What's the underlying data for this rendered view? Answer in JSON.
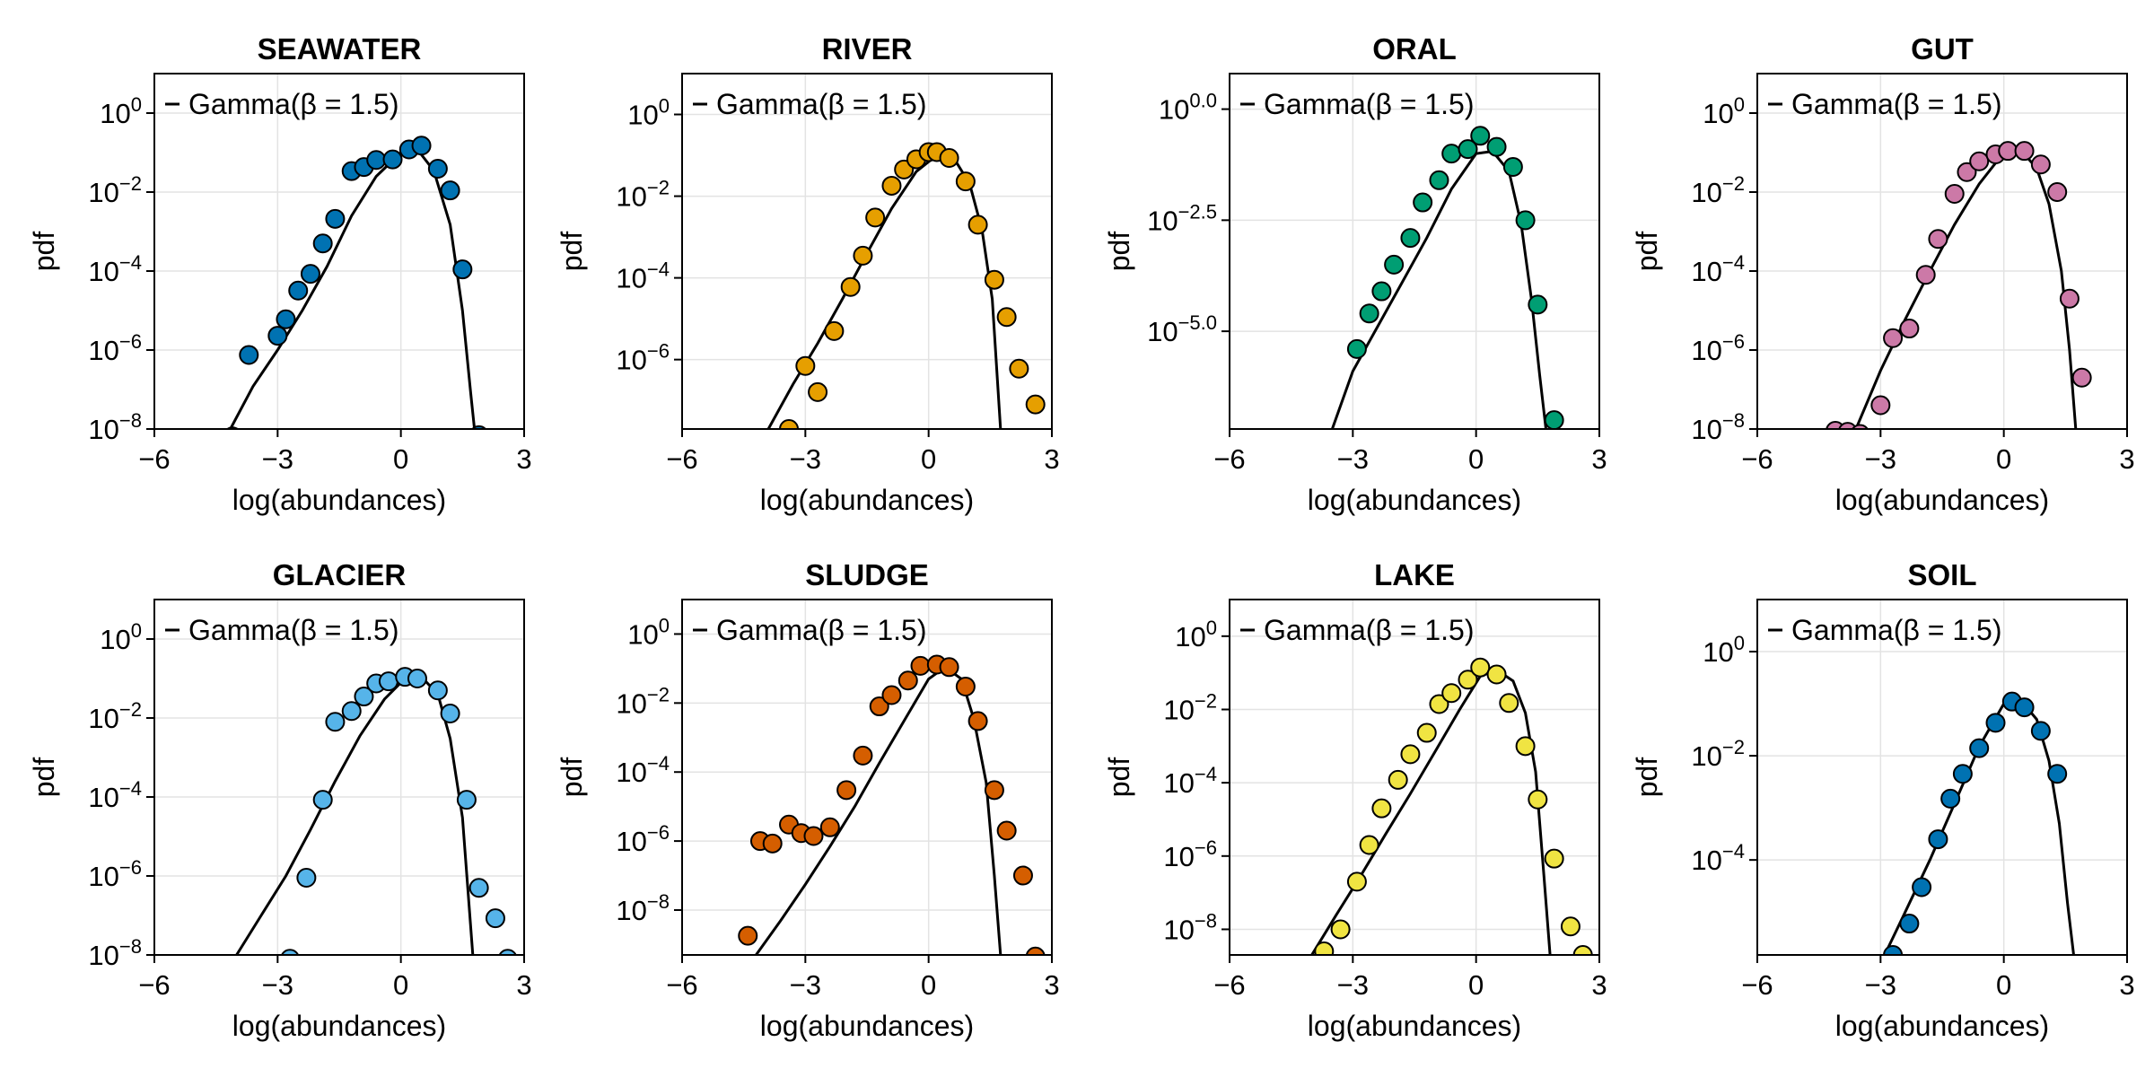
{
  "chart_data": [
    {
      "type": "scatter",
      "title": "SEAWATER",
      "xlabel": "log(abundances)",
      "ylabel": "pdf",
      "xlim": [
        -6,
        3
      ],
      "xticks": [
        -6,
        -3,
        0,
        3
      ],
      "xtick_labels": [
        "−6",
        "−3",
        "0",
        "3"
      ],
      "y_scale": "log10",
      "ylim": [
        1e-08,
        10.0
      ],
      "yticks": [
        1e-08,
        1e-06,
        0.0001,
        0.01,
        1
      ],
      "ytick_base": [
        "10",
        "10",
        "10",
        "10",
        "10"
      ],
      "ytick_exp": [
        "−8",
        "−6",
        "−4",
        "−2",
        "0"
      ],
      "grid": true,
      "legend_position": "top-left",
      "color": "#0072b2",
      "series": [
        {
          "name": "Gamma(β = 1.5)",
          "kind": "line",
          "x": [
            -4.2,
            -3.6,
            -3.0,
            -2.4,
            -1.8,
            -1.2,
            -0.6,
            0.0,
            0.4,
            0.8,
            1.2,
            1.5,
            1.7,
            1.8
          ],
          "y": [
            8e-09,
            1.2e-07,
            1e-06,
            1e-05,
            0.00013,
            0.0025,
            0.025,
            0.1,
            0.12,
            0.035,
            0.0015,
            1e-05,
            8e-08,
            8e-09
          ]
        },
        {
          "kind": "scatter",
          "x": [
            -4.1,
            -3.7,
            -3.0,
            -2.8,
            -2.5,
            -2.2,
            -1.9,
            -1.6,
            -1.2,
            -0.9,
            -0.6,
            -0.2,
            0.2,
            0.5,
            0.9,
            1.2,
            1.5,
            1.9
          ],
          "y": [
            6.5e-09,
            7.5e-07,
            2.3e-06,
            6e-06,
            3.2e-05,
            8.5e-05,
            0.0005,
            0.0021,
            0.034,
            0.043,
            0.065,
            0.067,
            0.12,
            0.15,
            0.039,
            0.011,
            0.00011,
            7e-09
          ]
        }
      ]
    },
    {
      "type": "scatter",
      "title": "RIVER",
      "xlabel": "log(abundances)",
      "ylabel": "pdf",
      "xlim": [
        -6,
        3
      ],
      "xticks": [
        -6,
        -3,
        0,
        3
      ],
      "xtick_labels": [
        "−6",
        "−3",
        "0",
        "3"
      ],
      "y_scale": "log10",
      "ylim": [
        2e-08,
        10.0
      ],
      "yticks": [
        1e-06,
        0.0001,
        0.01,
        1
      ],
      "ytick_base": [
        "10",
        "10",
        "10",
        "10"
      ],
      "ytick_exp": [
        "−6",
        "−4",
        "−2",
        "0"
      ],
      "grid": true,
      "legend_position": "top-left",
      "color": "#e69f00",
      "series": [
        {
          "name": "Gamma(β = 1.5)",
          "kind": "line",
          "x": [
            -3.9,
            -3.3,
            -2.7,
            -2.1,
            -1.5,
            -0.9,
            -0.3,
            0.2,
            0.6,
            1.0,
            1.3,
            1.55,
            1.75
          ],
          "y": [
            2e-08,
            2.5e-07,
            2.5e-06,
            3e-05,
            0.0004,
            0.005,
            0.04,
            0.1,
            0.09,
            0.02,
            0.0015,
            3e-05,
            2e-08
          ]
        },
        {
          "kind": "scatter",
          "x": [
            -3.4,
            -3.0,
            -2.7,
            -2.3,
            -1.9,
            -1.6,
            -1.3,
            -0.9,
            -0.6,
            -0.3,
            0.0,
            0.2,
            0.5,
            0.9,
            1.2,
            1.6,
            1.9,
            2.2,
            2.6
          ],
          "y": [
            2e-08,
            7e-07,
            1.6e-07,
            5e-06,
            6e-05,
            0.00035,
            0.003,
            0.018,
            0.045,
            0.08,
            0.12,
            0.12,
            0.086,
            0.023,
            0.002,
            9e-05,
            1.1e-05,
            6e-07,
            8e-08
          ]
        }
      ]
    },
    {
      "type": "scatter",
      "title": "ORAL",
      "xlabel": "log(abundances)",
      "ylabel": "pdf",
      "xlim": [
        -6,
        3
      ],
      "xticks": [
        -6,
        -3,
        0,
        3
      ],
      "xtick_labels": [
        "−6",
        "−3",
        "0",
        "3"
      ],
      "y_scale": "log10",
      "ylim": [
        -7.2,
        0.8
      ],
      "yticks": [
        -5.0,
        -2.5,
        0.0
      ],
      "ytick_base": [
        "10",
        "10",
        "10"
      ],
      "ytick_exp": [
        "−5.0",
        "−2.5",
        "0.0"
      ],
      "y_values_are_log10": true,
      "grid": true,
      "legend_position": "top-left",
      "color": "#009e73",
      "series": [
        {
          "name": "Gamma(β = 1.5)",
          "kind": "line",
          "x": [
            -3.5,
            -3.0,
            -2.4,
            -1.8,
            -1.2,
            -0.6,
            0.0,
            0.4,
            0.8,
            1.1,
            1.35,
            1.55,
            1.7
          ],
          "y": [
            -7.2,
            -5.9,
            -4.9,
            -3.9,
            -2.9,
            -1.8,
            -1.0,
            -0.95,
            -1.4,
            -2.6,
            -4.3,
            -6.0,
            -7.2
          ]
        },
        {
          "kind": "scatter",
          "x": [
            -2.9,
            -2.6,
            -2.3,
            -2.0,
            -1.6,
            -1.3,
            -0.9,
            -0.6,
            -0.2,
            0.1,
            0.5,
            0.9,
            1.2,
            1.5,
            1.9
          ],
          "y": [
            -5.4,
            -4.6,
            -4.1,
            -3.5,
            -2.9,
            -2.1,
            -1.6,
            -1.0,
            -0.9,
            -0.6,
            -0.85,
            -1.3,
            -2.5,
            -4.4,
            -7.0
          ]
        }
      ]
    },
    {
      "type": "scatter",
      "title": "GUT",
      "xlabel": "log(abundances)",
      "ylabel": "pdf",
      "xlim": [
        -6,
        3
      ],
      "xticks": [
        -6,
        -3,
        0,
        3
      ],
      "xtick_labels": [
        "−6",
        "−3",
        "0",
        "3"
      ],
      "y_scale": "log10",
      "ylim": [
        1e-08,
        10.0
      ],
      "yticks": [
        1e-08,
        1e-06,
        0.0001,
        0.01,
        1
      ],
      "ytick_base": [
        "10",
        "10",
        "10",
        "10",
        "10"
      ],
      "ytick_exp": [
        "−8",
        "−6",
        "−4",
        "−2",
        "0"
      ],
      "grid": true,
      "legend_position": "top-left",
      "color": "#cc79a7",
      "series": [
        {
          "name": "Gamma(β = 1.5)",
          "kind": "line",
          "x": [
            -3.6,
            -3.0,
            -2.4,
            -1.8,
            -1.2,
            -0.6,
            0.0,
            0.4,
            0.8,
            1.1,
            1.4,
            1.6,
            1.75
          ],
          "y": [
            1e-08,
            3e-07,
            6e-06,
            0.0001,
            0.0015,
            0.016,
            0.1,
            0.12,
            0.04,
            0.005,
            0.0001,
            1e-06,
            1e-08
          ]
        },
        {
          "kind": "scatter",
          "x": [
            -4.1,
            -3.8,
            -3.5,
            -3.0,
            -2.7,
            -2.3,
            -1.9,
            -1.6,
            -1.2,
            -0.9,
            -0.6,
            -0.2,
            0.1,
            0.5,
            0.9,
            1.3,
            1.6,
            1.9
          ],
          "y": [
            9e-09,
            8.5e-09,
            7.5e-09,
            4e-08,
            2e-06,
            3.5e-06,
            8e-05,
            0.00065,
            0.009,
            0.032,
            0.06,
            0.09,
            0.11,
            0.11,
            0.05,
            0.01,
            2e-05,
            2e-07
          ]
        }
      ]
    },
    {
      "type": "scatter",
      "title": "GLACIER",
      "xlabel": "log(abundances)",
      "ylabel": "pdf",
      "xlim": [
        -6,
        3
      ],
      "xticks": [
        -6,
        -3,
        0,
        3
      ],
      "xtick_labels": [
        "−6",
        "−3",
        "0",
        "3"
      ],
      "y_scale": "log10",
      "ylim": [
        1e-08,
        10.0
      ],
      "yticks": [
        1e-08,
        1e-06,
        0.0001,
        0.01,
        1
      ],
      "ytick_base": [
        "10",
        "10",
        "10",
        "10",
        "10"
      ],
      "ytick_exp": [
        "−8",
        "−6",
        "−4",
        "−2",
        "0"
      ],
      "grid": true,
      "legend_position": "top-left",
      "color": "#56b4e9",
      "series": [
        {
          "name": "Gamma(β = 1.5)",
          "kind": "line",
          "x": [
            -4.0,
            -3.4,
            -2.8,
            -2.2,
            -1.6,
            -1.0,
            -0.4,
            0.1,
            0.5,
            0.9,
            1.2,
            1.5,
            1.75
          ],
          "y": [
            1e-08,
            1e-07,
            1e-06,
            1.5e-05,
            0.00025,
            0.0035,
            0.03,
            0.1,
            0.11,
            0.04,
            0.003,
            3e-05,
            1e-08
          ]
        },
        {
          "kind": "scatter",
          "x": [
            -2.7,
            -2.3,
            -1.9,
            -1.6,
            -1.2,
            -0.9,
            -0.6,
            -0.3,
            0.1,
            0.4,
            0.9,
            1.2,
            1.6,
            1.9,
            2.3,
            2.6
          ],
          "y": [
            8e-09,
            9e-07,
            8.5e-05,
            0.008,
            0.015,
            0.035,
            0.075,
            0.085,
            0.11,
            0.1,
            0.05,
            0.013,
            8.5e-05,
            5e-07,
            8.5e-08,
            8e-09
          ]
        }
      ]
    },
    {
      "type": "scatter",
      "title": "SLUDGE",
      "xlabel": "log(abundances)",
      "ylabel": "pdf",
      "xlim": [
        -6,
        3
      ],
      "xticks": [
        -6,
        -3,
        0,
        3
      ],
      "xtick_labels": [
        "−6",
        "−3",
        "0",
        "3"
      ],
      "y_scale": "log10",
      "ylim": [
        5e-10,
        10.0
      ],
      "yticks": [
        1e-08,
        1e-06,
        0.0001,
        0.01,
        1
      ],
      "ytick_base": [
        "10",
        "10",
        "10",
        "10",
        "10"
      ],
      "ytick_exp": [
        "−8",
        "−6",
        "−4",
        "−2",
        "0"
      ],
      "grid": true,
      "legend_position": "top-left",
      "color": "#d55e00",
      "series": [
        {
          "name": "Gamma(β = 1.5)",
          "kind": "line",
          "x": [
            -4.2,
            -3.6,
            -3.0,
            -2.4,
            -1.8,
            -1.2,
            -0.6,
            0.0,
            0.4,
            0.8,
            1.1,
            1.4,
            1.6,
            1.75
          ],
          "y": [
            5e-10,
            5e-09,
            5.5e-08,
            7e-07,
            1e-05,
            0.00018,
            0.003,
            0.05,
            0.11,
            0.05,
            0.0035,
            5e-05,
            1e-07,
            5e-10
          ]
        },
        {
          "kind": "scatter",
          "x": [
            -4.4,
            -4.1,
            -3.8,
            -3.4,
            -3.1,
            -2.8,
            -2.4,
            -2.0,
            -1.6,
            -1.2,
            -0.9,
            -0.5,
            -0.2,
            0.2,
            0.5,
            0.9,
            1.2,
            1.6,
            1.9,
            2.3,
            2.6
          ],
          "y": [
            1.8e-09,
            1e-06,
            8.5e-07,
            3e-06,
            1.7e-06,
            1.4e-06,
            2.5e-06,
            3e-05,
            0.0003,
            0.008,
            0.017,
            0.045,
            0.12,
            0.13,
            0.11,
            0.03,
            0.003,
            3e-05,
            2e-06,
            1e-07,
            4.5e-10
          ]
        }
      ]
    },
    {
      "type": "scatter",
      "title": "LAKE",
      "xlabel": "log(abundances)",
      "ylabel": "pdf",
      "xlim": [
        -6,
        3
      ],
      "xticks": [
        -6,
        -3,
        0,
        3
      ],
      "xtick_labels": [
        "−6",
        "−3",
        "0",
        "3"
      ],
      "y_scale": "log10",
      "ylim": [
        2e-09,
        10.0
      ],
      "yticks": [
        1e-08,
        1e-06,
        0.0001,
        0.01,
        1
      ],
      "ytick_base": [
        "10",
        "10",
        "10",
        "10",
        "10"
      ],
      "ytick_exp": [
        "−8",
        "−6",
        "−4",
        "−2",
        "0"
      ],
      "grid": true,
      "legend_position": "top-left",
      "color": "#f0e442",
      "series": [
        {
          "name": "Gamma(β = 1.5)",
          "kind": "line",
          "x": [
            -4.0,
            -3.4,
            -2.8,
            -2.2,
            -1.6,
            -1.0,
            -0.4,
            0.1,
            0.5,
            0.9,
            1.2,
            1.45,
            1.65,
            1.8
          ],
          "y": [
            2e-09,
            2.5e-08,
            3e-07,
            4e-06,
            5e-05,
            0.0007,
            0.01,
            0.08,
            0.12,
            0.06,
            0.008,
            0.0002,
            3e-07,
            2e-09
          ]
        },
        {
          "kind": "scatter",
          "x": [
            -3.7,
            -3.3,
            -2.9,
            -2.6,
            -2.3,
            -1.9,
            -1.6,
            -1.2,
            -0.9,
            -0.6,
            -0.2,
            0.1,
            0.5,
            0.8,
            1.2,
            1.5,
            1.9,
            2.3,
            2.6
          ],
          "y": [
            2.5e-09,
            1e-08,
            2e-07,
            2e-06,
            2e-05,
            0.00012,
            0.0006,
            0.0023,
            0.014,
            0.028,
            0.065,
            0.14,
            0.09,
            0.015,
            0.001,
            3.5e-05,
            8.5e-07,
            1.2e-08,
            2e-09
          ]
        }
      ]
    },
    {
      "type": "scatter",
      "title": "SOIL",
      "xlabel": "log(abundances)",
      "ylabel": "pdf",
      "xlim": [
        -6,
        3
      ],
      "xticks": [
        -6,
        -3,
        0,
        3
      ],
      "xtick_labels": [
        "−6",
        "−3",
        "0",
        "3"
      ],
      "y_scale": "log10",
      "ylim": [
        1.5e-06,
        10.0
      ],
      "yticks": [
        0.0001,
        0.01,
        1
      ],
      "ytick_base": [
        "10",
        "10",
        "10"
      ],
      "ytick_exp": [
        "−4",
        "−2",
        "0"
      ],
      "grid": true,
      "legend_position": "top-left",
      "color": "#0072b2",
      "series": [
        {
          "name": "Gamma(β = 1.5)",
          "kind": "line",
          "x": [
            -2.9,
            -2.4,
            -1.8,
            -1.2,
            -0.6,
            0.0,
            0.4,
            0.8,
            1.1,
            1.35,
            1.55,
            1.7
          ],
          "y": [
            1.5e-06,
            1e-05,
            0.0001,
            0.0012,
            0.015,
            0.1,
            0.12,
            0.05,
            0.008,
            0.0005,
            1.5e-05,
            1.5e-06
          ]
        },
        {
          "kind": "scatter",
          "x": [
            -2.7,
            -2.3,
            -2.0,
            -1.6,
            -1.3,
            -1.0,
            -0.6,
            -0.2,
            0.2,
            0.5,
            0.9,
            1.3
          ],
          "y": [
            1.5e-06,
            6e-06,
            3e-05,
            0.00025,
            0.0015,
            0.0045,
            0.014,
            0.043,
            0.11,
            0.085,
            0.03,
            0.0045
          ]
        }
      ]
    }
  ]
}
